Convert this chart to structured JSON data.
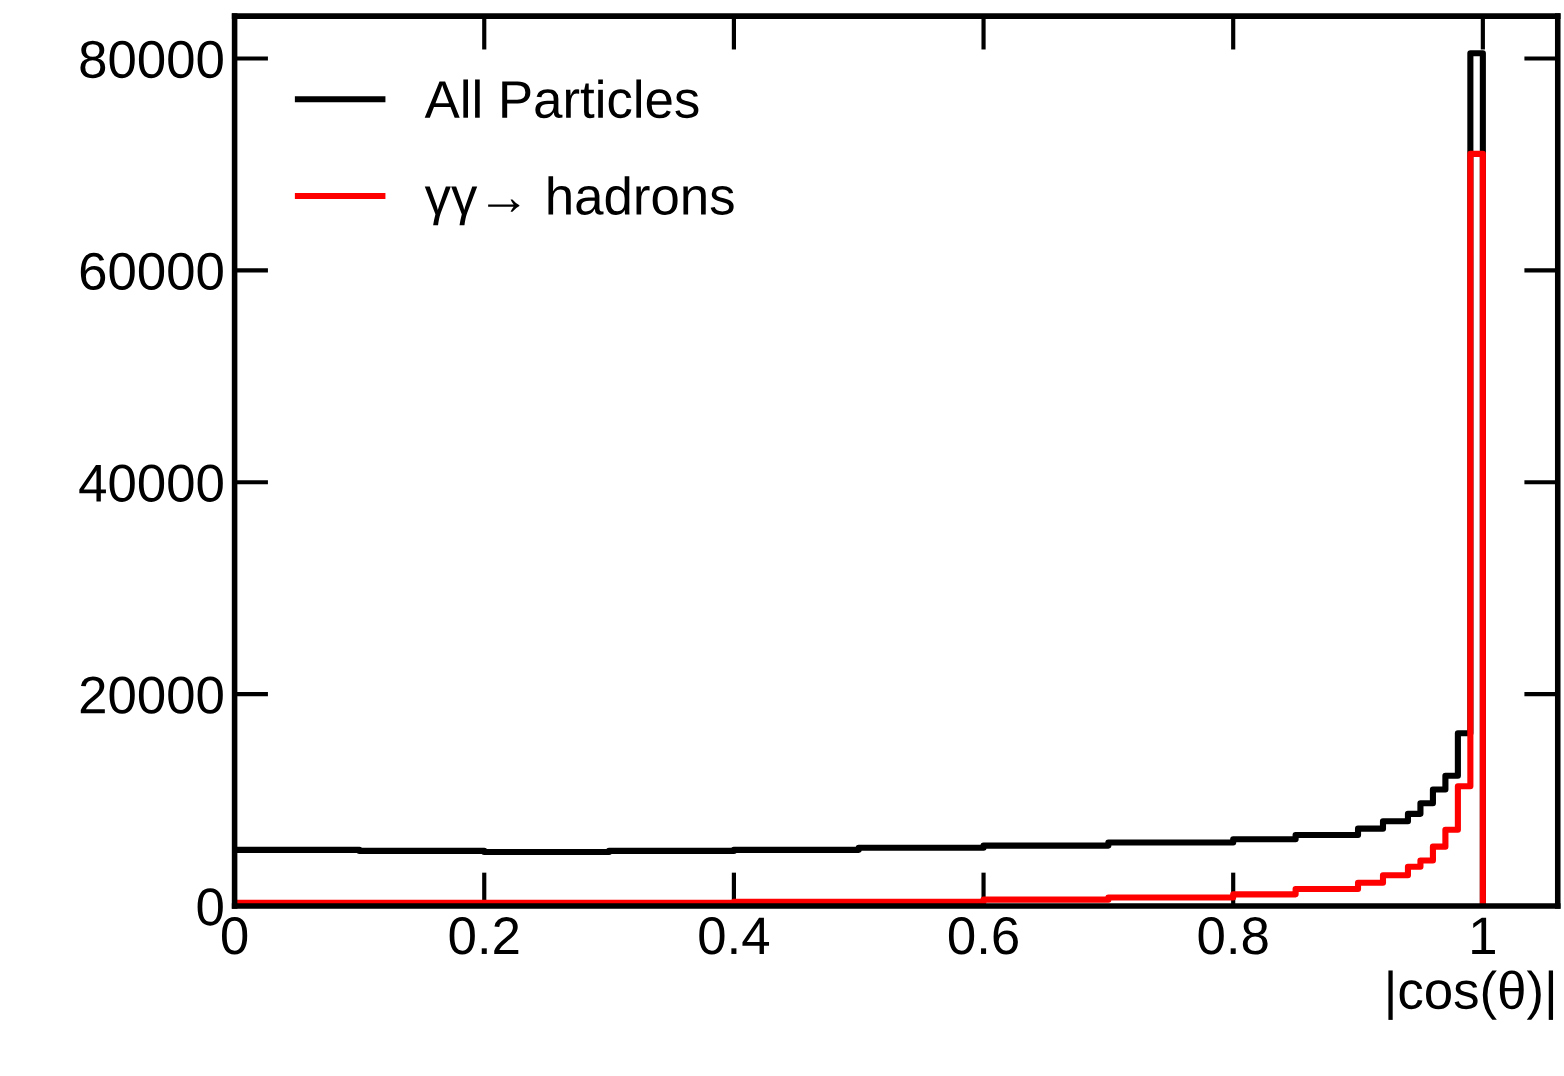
{
  "chart_data": {
    "type": "histogram",
    "xlabel": "|cos(θ)|",
    "bins": [
      0,
      0.1,
      0.2,
      0.3,
      0.4,
      0.5,
      0.6,
      0.7,
      0.8,
      0.85,
      0.9,
      0.92,
      0.94,
      0.95,
      0.96,
      0.97,
      0.98,
      0.99,
      1.0
    ],
    "series": [
      {
        "name": "All Particles",
        "color": "#000000",
        "values": [
          5300,
          5200,
          5100,
          5200,
          5300,
          5500,
          5700,
          6000,
          6300,
          6700,
          7300,
          8000,
          8700,
          9700,
          11000,
          12300,
          16300,
          80500
        ]
      },
      {
        "name": "γγ→ hadrons",
        "color": "#ff0000",
        "values": [
          300,
          300,
          300,
          300,
          400,
          400,
          600,
          800,
          1100,
          1600,
          2200,
          2900,
          3700,
          4300,
          5600,
          7200,
          11300,
          71000
        ]
      }
    ],
    "xlim": [
      0,
      1.06
    ],
    "ylim": [
      0,
      84000
    ],
    "xticks": [
      0,
      0.2,
      0.4,
      0.6,
      0.8,
      1
    ],
    "yticks": [
      0,
      20000,
      40000,
      60000,
      80000
    ],
    "legend": "top left",
    "grid": false
  }
}
